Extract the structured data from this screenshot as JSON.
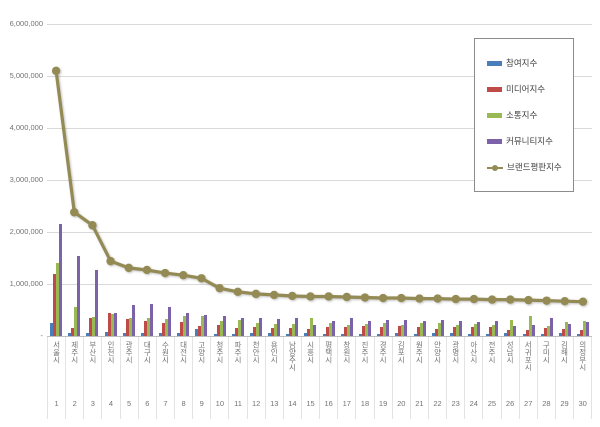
{
  "axis": {
    "yticks": [
      {
        "label": "6,000,000",
        "value": 6000000
      },
      {
        "label": "5,000,000",
        "value": 5000000
      },
      {
        "label": "4,000,000",
        "value": 4000000
      },
      {
        "label": "3,000,000",
        "value": 3000000
      },
      {
        "label": "2,000,000",
        "value": 2000000
      },
      {
        "label": "1,000,000",
        "value": 1000000
      },
      {
        "label": "-",
        "value": 0
      }
    ]
  },
  "colors": {
    "grid": "#d9d9d9",
    "axis_text": "#737373",
    "participation_blue": "#4a7ebb",
    "media_red": "#be4b48",
    "communication_green": "#98b954",
    "community_purple": "#7b62a9",
    "brand_olive": "#948a54"
  },
  "chart_data": {
    "type": "bar+line",
    "title": "",
    "grid": true,
    "legend_position": "inside-top-right",
    "ylim": [
      0,
      6000000
    ],
    "categories": [
      "서울시",
      "제주시",
      "부산시",
      "인천시",
      "광주시",
      "대구시",
      "수원시",
      "대전시",
      "고양시",
      "청주시",
      "파주시",
      "천안시",
      "용인시",
      "남양주시",
      "시흥시",
      "평택시",
      "창원시",
      "진주시",
      "경주시",
      "김포시",
      "원주시",
      "안양시",
      "광명시",
      "아산시",
      "전주시",
      "성남시",
      "서귀포시",
      "구미시",
      "김해시",
      "의정부시"
    ],
    "ranks": [
      "1",
      "2",
      "3",
      "4",
      "5",
      "6",
      "7",
      "8",
      "9",
      "10",
      "11",
      "12",
      "13",
      "14",
      "15",
      "16",
      "17",
      "18",
      "19",
      "20",
      "21",
      "22",
      "23",
      "24",
      "25",
      "26",
      "27",
      "28",
      "29",
      "30"
    ],
    "series": [
      {
        "name": "참여지수",
        "type": "bar",
        "color": "#4a7ebb",
        "values": [
          250000,
          50000,
          50000,
          80000,
          50000,
          50000,
          50000,
          60000,
          130000,
          40000,
          40000,
          50000,
          60000,
          40000,
          50000,
          40000,
          40000,
          40000,
          30000,
          50000,
          40000,
          50000,
          50000,
          40000,
          40000,
          60000,
          30000,
          30000,
          50000,
          40000
        ]
      },
      {
        "name": "미디어지수",
        "type": "bar",
        "color": "#be4b48",
        "values": [
          1200000,
          160000,
          350000,
          450000,
          330000,
          280000,
          250000,
          270000,
          200000,
          220000,
          150000,
          180000,
          160000,
          150000,
          140000,
          180000,
          170000,
          190000,
          170000,
          190000,
          170000,
          140000,
          170000,
          170000,
          180000,
          120000,
          120000,
          160000,
          130000,
          120000
        ]
      },
      {
        "name": "소통지수",
        "type": "bar",
        "color": "#98b954",
        "values": [
          1400000,
          550000,
          370000,
          420000,
          350000,
          350000,
          320000,
          380000,
          380000,
          280000,
          300000,
          250000,
          240000,
          240000,
          350000,
          250000,
          220000,
          230000,
          250000,
          220000,
          250000,
          250000,
          220000,
          230000,
          220000,
          300000,
          380000,
          200000,
          270000,
          280000
        ]
      },
      {
        "name": "커뮤니티지수",
        "type": "bar",
        "color": "#7b62a9",
        "values": [
          2150000,
          1530000,
          1270000,
          450000,
          600000,
          620000,
          550000,
          450000,
          400000,
          380000,
          350000,
          350000,
          330000,
          340000,
          220000,
          290000,
          340000,
          280000,
          300000,
          300000,
          280000,
          300000,
          280000,
          270000,
          280000,
          200000,
          220000,
          340000,
          240000,
          260000
        ]
      },
      {
        "name": "브랜드평판지수",
        "type": "line",
        "color": "#948a54",
        "values": [
          5100000,
          2380000,
          2130000,
          1440000,
          1310000,
          1270000,
          1210000,
          1170000,
          1110000,
          920000,
          850000,
          810000,
          790000,
          770000,
          760000,
          760000,
          750000,
          740000,
          730000,
          730000,
          720000,
          720000,
          710000,
          710000,
          700000,
          700000,
          690000,
          680000,
          670000,
          660000
        ]
      }
    ]
  }
}
